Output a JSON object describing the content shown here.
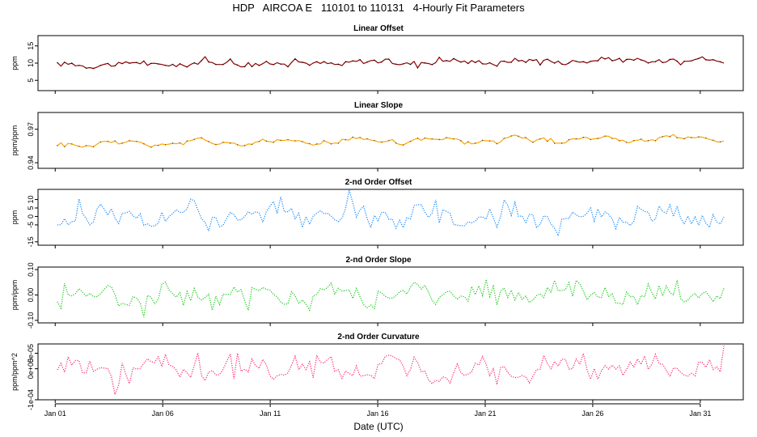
{
  "title": "HDP   AIRCOA E   110101 to 110131   4-Hourly Fit Parameters",
  "x_axis": {
    "label": "Date (UTC)",
    "ticks": [
      "Jan 01",
      "Jan 06",
      "Jan 11",
      "Jan 16",
      "Jan 21",
      "Jan 26",
      "Jan 31"
    ],
    "tick_days": [
      1,
      6,
      11,
      16,
      21,
      26,
      31
    ]
  },
  "chart_data": [
    {
      "type": "line",
      "title": "Linear Offset",
      "ylabel": "ppm",
      "ylim": [
        2,
        18
      ],
      "yticks": [
        "5",
        "10",
        "15"
      ],
      "ytick_values": [
        5,
        10,
        15
      ],
      "x_range": [
        1.1,
        32.1
      ],
      "color": "#8b0000",
      "marker_color": "#000000",
      "series": [
        {
          "base": 9.5,
          "end": 11.0,
          "amp": 0.9,
          "wave": 0.4
        }
      ]
    },
    {
      "type": "line",
      "title": "Linear Slope",
      "ylabel": "ppm/ppm",
      "ylim": [
        0.935,
        0.985
      ],
      "yticks": [
        "0.94",
        "0.97"
      ],
      "ytick_values": [
        0.94,
        0.97
      ],
      "x_range": [
        1.1,
        32.1
      ],
      "color": "#ffa500",
      "marker_color": "#444444",
      "series": [
        {
          "base": 0.957,
          "end": 0.962,
          "amp": 0.002,
          "wave": 0.002
        }
      ]
    },
    {
      "type": "line",
      "title": "2-nd Order Offset",
      "ylabel": "ppm",
      "ylim": [
        -17,
        16
      ],
      "yticks": [
        "-15",
        "-5",
        "0",
        "5",
        "10"
      ],
      "ytick_values": [
        -15,
        -5,
        0,
        5,
        10
      ],
      "x_range": [
        1.1,
        32.1
      ],
      "color": "#1e90ff",
      "series": [
        {
          "base": 0,
          "end": 0,
          "amp": 6.5,
          "wave": 3
        }
      ]
    },
    {
      "type": "line",
      "title": "2-nd Order Slope",
      "ylabel": "ppm/ppm",
      "ylim": [
        -0.11,
        0.11
      ],
      "yticks": [
        "-0.10",
        "0.00",
        "0.10"
      ],
      "ytick_values": [
        -0.1,
        0.0,
        0.1
      ],
      "x_range": [
        1.1,
        32.1
      ],
      "color": "#22cc22",
      "series": [
        {
          "base": 0,
          "end": 0,
          "amp": 0.04,
          "wave": 0.02
        }
      ]
    },
    {
      "type": "line",
      "title": "2-nd Order Curvature",
      "ylabel": "ppm/ppm^2",
      "ylim": [
        -0.0001,
        8e-05
      ],
      "yticks": [
        "-1e-04",
        "0e+00",
        "5e-05"
      ],
      "ytick_values": [
        -0.0001,
        0.0,
        5e-05
      ],
      "x_range": [
        1.1,
        32.1
      ],
      "color": "#ff3377",
      "series": [
        {
          "base": 0,
          "end": 0,
          "amp": 3.5e-05,
          "wave": 2e-05
        }
      ]
    }
  ]
}
